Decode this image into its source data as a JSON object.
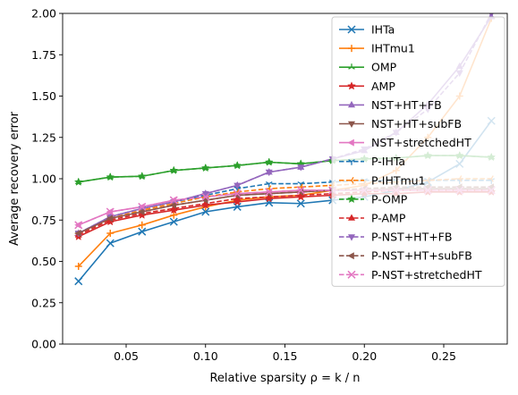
{
  "chart_data": {
    "type": "line",
    "xlabel": "Relative sparsity ρ = k / n",
    "ylabel": "Average recovery error",
    "xlim": [
      0.01,
      0.29
    ],
    "ylim": [
      0.0,
      2.0
    ],
    "x_ticks": [
      "0.05",
      "0.10",
      "0.15",
      "0.20",
      "0.25"
    ],
    "x_tick_values": [
      0.05,
      0.1,
      0.15,
      0.2,
      0.25
    ],
    "y_ticks": [
      "0.00",
      "0.25",
      "0.50",
      "0.75",
      "1.00",
      "1.25",
      "1.50",
      "1.75",
      "2.00"
    ],
    "y_tick_values": [
      0,
      0.25,
      0.5,
      0.75,
      1.0,
      1.25,
      1.5,
      1.75,
      2.0
    ],
    "grid": false,
    "legend_position": "top-right",
    "x": [
      0.02,
      0.04,
      0.06,
      0.08,
      0.1,
      0.12,
      0.14,
      0.16,
      0.18,
      0.2,
      0.22,
      0.24,
      0.26,
      0.28
    ],
    "series": [
      {
        "name": "IHTa",
        "color": "#1f77b4",
        "dash": "solid",
        "marker": "x",
        "values": [
          0.38,
          0.61,
          0.68,
          0.74,
          0.8,
          0.83,
          0.855,
          0.85,
          0.87,
          0.89,
          0.93,
          0.98,
          1.09,
          1.35
        ]
      },
      {
        "name": "IHTmu1",
        "color": "#ff7f0e",
        "dash": "solid",
        "marker": "plus",
        "values": [
          0.47,
          0.67,
          0.72,
          0.78,
          0.83,
          0.87,
          0.89,
          0.9,
          0.93,
          0.96,
          1.05,
          1.25,
          1.5,
          1.97
        ]
      },
      {
        "name": "OMP",
        "color": "#2ca02c",
        "dash": "solid",
        "marker": "tri_up",
        "values": [
          0.98,
          1.01,
          1.015,
          1.05,
          1.065,
          1.08,
          1.1,
          1.09,
          1.11,
          1.12,
          1.125,
          1.14,
          1.14,
          1.13
        ]
      },
      {
        "name": "AMP",
        "color": "#d62728",
        "dash": "solid",
        "marker": "star",
        "values": [
          0.65,
          0.74,
          0.78,
          0.81,
          0.84,
          0.86,
          0.88,
          0.89,
          0.9,
          0.91,
          0.91,
          0.92,
          0.92,
          0.92
        ]
      },
      {
        "name": "NST+HT+FB",
        "color": "#9467bd",
        "dash": "solid",
        "marker": "triangle_up",
        "values": [
          0.67,
          0.77,
          0.82,
          0.86,
          0.91,
          0.96,
          1.04,
          1.07,
          1.12,
          1.17,
          1.28,
          1.45,
          1.68,
          1.98
        ]
      },
      {
        "name": "NST+HT+subFB",
        "color": "#8c564b",
        "dash": "solid",
        "marker": "triangle_down",
        "values": [
          0.67,
          0.76,
          0.8,
          0.84,
          0.87,
          0.9,
          0.91,
          0.92,
          0.93,
          0.93,
          0.94,
          0.94,
          0.94,
          0.94
        ]
      },
      {
        "name": "NST+stretchedHT",
        "color": "#e377c2",
        "dash": "solid",
        "marker": "triangle_left",
        "values": [
          0.72,
          0.8,
          0.83,
          0.87,
          0.89,
          0.91,
          0.92,
          0.93,
          0.93,
          0.93,
          0.93,
          0.93,
          0.93,
          0.93
        ]
      },
      {
        "name": "P-IHTa",
        "color": "#1f77b4",
        "dash": "dashed",
        "marker": "tri_down",
        "values": [
          0.67,
          0.77,
          0.82,
          0.86,
          0.9,
          0.94,
          0.97,
          0.97,
          0.98,
          0.99,
          0.99,
          0.99,
          0.99,
          0.99
        ]
      },
      {
        "name": "P-IHTmu1",
        "color": "#ff7f0e",
        "dash": "dashed",
        "marker": "tri_left",
        "values": [
          0.67,
          0.76,
          0.81,
          0.85,
          0.89,
          0.92,
          0.94,
          0.95,
          0.96,
          0.97,
          0.98,
          0.99,
          1.0,
          1.0
        ]
      },
      {
        "name": "P-OMP",
        "color": "#2ca02c",
        "dash": "dashed",
        "marker": "star",
        "values": [
          0.98,
          1.01,
          1.015,
          1.05,
          1.065,
          1.08,
          1.1,
          1.09,
          1.11,
          1.12,
          1.125,
          1.14,
          1.14,
          1.13
        ]
      },
      {
        "name": "P-AMP",
        "color": "#d62728",
        "dash": "dashed",
        "marker": "triangle_up",
        "values": [
          0.66,
          0.75,
          0.79,
          0.82,
          0.85,
          0.88,
          0.89,
          0.9,
          0.91,
          0.92,
          0.93,
          0.93,
          0.93,
          0.93
        ]
      },
      {
        "name": "P-NST+HT+FB",
        "color": "#9467bd",
        "dash": "dashed",
        "marker": "triangle_down",
        "values": [
          0.67,
          0.77,
          0.82,
          0.86,
          0.91,
          0.96,
          1.04,
          1.07,
          1.12,
          1.18,
          1.28,
          1.42,
          1.64,
          2.0
        ]
      },
      {
        "name": "P-NST+HT+subFB",
        "color": "#8c564b",
        "dash": "dashed",
        "marker": "triangle_left",
        "values": [
          0.67,
          0.76,
          0.8,
          0.84,
          0.87,
          0.9,
          0.91,
          0.92,
          0.93,
          0.94,
          0.95,
          0.95,
          0.95,
          0.95
        ]
      },
      {
        "name": "P-NST+stretchedHT",
        "color": "#e377c2",
        "dash": "dashed",
        "marker": "x",
        "values": [
          0.72,
          0.8,
          0.83,
          0.87,
          0.89,
          0.91,
          0.92,
          0.93,
          0.93,
          0.93,
          0.93,
          0.93,
          0.93,
          0.93
        ]
      }
    ]
  }
}
